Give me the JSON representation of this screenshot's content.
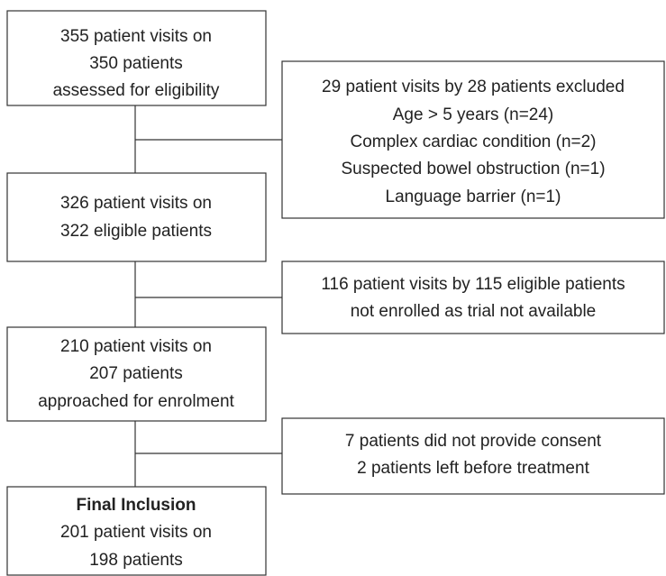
{
  "nodes": [
    {
      "lines": [
        "355 patient visits on",
        "350 patients",
        "assessed for eligibility"
      ]
    },
    {
      "lines": [
        "326 patient visits on",
        "322 eligible patients"
      ]
    },
    {
      "lines": [
        "210 patient visits on",
        "207 patients",
        "approached for enrolment"
      ]
    },
    {
      "title": "Final Inclusion",
      "lines": [
        "201 patient visits on",
        "198 patients"
      ]
    }
  ],
  "exclusions": [
    {
      "lines": [
        "29 patient visits by 28 patients excluded",
        "Age > 5 years (n=24)",
        "Complex cardiac condition (n=2)",
        "Suspected bowel obstruction (n=1)",
        "Language barrier (n=1)"
      ]
    },
    {
      "lines": [
        "116 patient visits by 115 eligible patients",
        "not enrolled as trial not available"
      ]
    },
    {
      "lines": [
        "7 patients did not provide consent",
        "2 patients left before treatment"
      ]
    }
  ]
}
